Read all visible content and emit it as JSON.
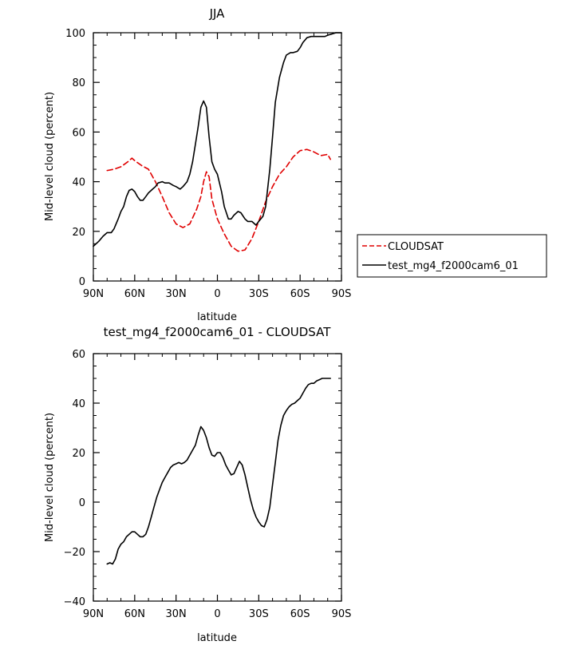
{
  "chart_data": [
    {
      "type": "line",
      "title": "JJA",
      "xlabel": "latitude",
      "ylabel": "Mid-level cloud (percent)",
      "xlim": [
        90,
        -90
      ],
      "ylim": [
        0,
        100
      ],
      "xticks": [
        90,
        60,
        30,
        0,
        -30,
        -60,
        -90
      ],
      "xtick_labels": [
        "90N",
        "60N",
        "30N",
        "0",
        "30S",
        "60S",
        "90S"
      ],
      "yticks": [
        0,
        20,
        40,
        60,
        80,
        100
      ],
      "ytick_labels": [
        "0",
        "20",
        "40",
        "60",
        "80",
        "100"
      ],
      "legend": "outside-right",
      "series": [
        {
          "name": "CLOUDSAT",
          "color": "#e00000",
          "dash": true,
          "x": [
            80,
            75,
            70,
            65,
            62,
            60,
            55,
            50,
            45,
            40,
            35,
            30,
            25,
            20,
            15,
            12,
            10,
            8,
            6,
            4,
            0,
            -5,
            -10,
            -15,
            -20,
            -25,
            -30,
            -35,
            -40,
            -45,
            -50,
            -55,
            -60,
            -65,
            -70,
            -75,
            -80,
            -82
          ],
          "y": [
            44.5,
            45,
            46,
            48,
            49.5,
            48.5,
            46.5,
            45,
            40,
            34,
            27.5,
            23,
            21.5,
            23,
            29,
            34,
            40,
            44,
            42,
            33,
            25,
            19,
            14,
            12,
            12.5,
            17,
            24,
            32,
            38,
            43,
            46,
            50,
            52.5,
            53,
            52,
            50.5,
            51,
            49
          ]
        },
        {
          "name": "test_mg4_f2000cam6_01",
          "color": "#000000",
          "dash": false,
          "x": [
            90,
            86,
            83,
            80,
            77,
            75,
            72,
            70,
            68,
            66,
            64,
            62,
            60,
            58,
            56,
            54,
            52,
            50,
            47,
            45,
            43,
            40,
            38,
            35,
            32,
            30,
            27,
            25,
            22,
            20,
            18,
            16,
            14,
            12,
            10,
            8,
            6,
            4,
            2,
            0,
            -3,
            -5,
            -8,
            -10,
            -12,
            -15,
            -17,
            -20,
            -22,
            -25,
            -28,
            -30,
            -33,
            -35,
            -38,
            -40,
            -42,
            -45,
            -48,
            -50,
            -53,
            -55,
            -58,
            -60,
            -62,
            -65,
            -68,
            -70,
            -72,
            -75,
            -78,
            -80,
            -83,
            -86,
            -90
          ],
          "y": [
            14,
            16,
            18,
            19.5,
            19.5,
            21,
            25,
            28,
            30,
            34,
            36.5,
            37,
            36,
            34,
            32.5,
            32.5,
            34,
            35.5,
            37,
            38,
            39.5,
            40,
            39.5,
            39.5,
            38.5,
            38,
            37,
            38,
            40,
            43,
            48,
            55,
            62,
            70,
            72.5,
            70,
            58,
            48,
            45,
            43,
            36,
            30,
            25,
            25,
            26.5,
            28,
            27.5,
            25,
            24,
            24,
            22.5,
            24,
            26,
            30,
            45,
            58,
            72,
            82,
            88,
            91,
            92,
            92,
            92.5,
            94,
            96,
            98,
            98.5,
            98.5,
            98.5,
            98.5,
            98.5,
            99,
            99.5,
            100,
            100
          ]
        }
      ]
    },
    {
      "type": "line",
      "title": "test_mg4_f2000cam6_01 - CLOUDSAT",
      "xlabel": "latitude",
      "ylabel": "Mid-level cloud (percent)",
      "xlim": [
        90,
        -90
      ],
      "ylim": [
        -40,
        60
      ],
      "xticks": [
        90,
        60,
        30,
        0,
        -30,
        -60,
        -90
      ],
      "xtick_labels": [
        "90N",
        "60N",
        "30N",
        "0",
        "30S",
        "60S",
        "90S"
      ],
      "yticks": [
        -40,
        -20,
        0,
        20,
        40,
        60
      ],
      "ytick_labels": [
        "−40",
        "−20",
        "0",
        "20",
        "40",
        "60"
      ],
      "series": [
        {
          "color": "#000000",
          "x": [
            80,
            78,
            76,
            74,
            72,
            70,
            68,
            66,
            64,
            62,
            60,
            58,
            56,
            54,
            52,
            50,
            48,
            46,
            44,
            42,
            40,
            38,
            36,
            34,
            32,
            30,
            28,
            26,
            24,
            22,
            20,
            18,
            16,
            14,
            12,
            10,
            8,
            6,
            4,
            2,
            0,
            -2,
            -4,
            -6,
            -8,
            -10,
            -12,
            -14,
            -16,
            -18,
            -20,
            -22,
            -24,
            -26,
            -28,
            -30,
            -32,
            -34,
            -36,
            -38,
            -40,
            -42,
            -44,
            -46,
            -48,
            -50,
            -52,
            -54,
            -56,
            -58,
            -60,
            -62,
            -64,
            -66,
            -68,
            -70,
            -72,
            -74,
            -76,
            -78,
            -80,
            -82
          ],
          "y": [
            -25,
            -24.5,
            -25,
            -23,
            -19,
            -17,
            -16,
            -14,
            -13,
            -12,
            -12,
            -13,
            -14,
            -14,
            -13,
            -10,
            -6,
            -2,
            2,
            5,
            8,
            10,
            12,
            14,
            15,
            15.5,
            16,
            15.5,
            16,
            17,
            19,
            21,
            23,
            27,
            30.5,
            29,
            26,
            22,
            19,
            18.5,
            20,
            20,
            18,
            15,
            13,
            11,
            11.5,
            14,
            16.5,
            15,
            11,
            6,
            1,
            -3,
            -6,
            -8,
            -9.5,
            -10,
            -7,
            -2,
            7,
            16,
            25,
            31,
            35,
            37,
            38.5,
            39.5,
            40,
            41,
            42,
            44,
            46,
            47.5,
            48,
            48,
            49,
            49.5,
            50,
            50,
            50,
            50
          ]
        }
      ]
    }
  ]
}
